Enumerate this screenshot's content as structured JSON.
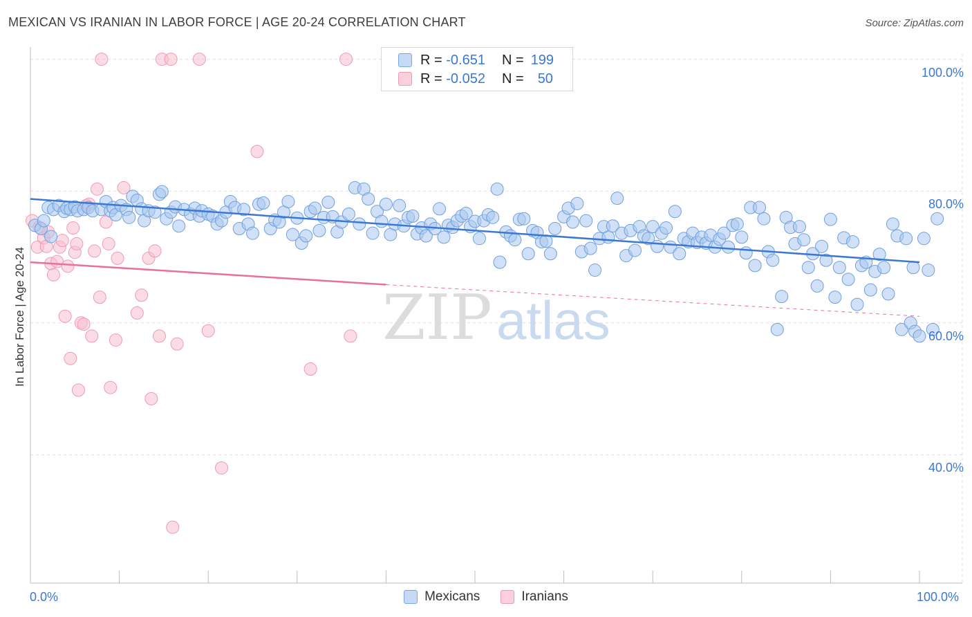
{
  "title": "MEXICAN VS IRANIAN IN LABOR FORCE | AGE 20-24 CORRELATION CHART",
  "source": "Source: ZipAtlas.com",
  "watermark": {
    "zip": "ZIP",
    "atlas": "atlas"
  },
  "legend": {
    "rows": [
      {
        "r_label": "R =",
        "r_value": "-0.651",
        "n_label": "N =",
        "n_value": "199",
        "color": "#a9c8f0"
      },
      {
        "r_label": "R =",
        "r_value": "-0.052",
        "n_label": "N =",
        "n_value": "50",
        "color": "#f5b8c8"
      }
    ],
    "bottom": [
      "Mexicans",
      "Iranians"
    ]
  },
  "colors": {
    "blue": "#3a78d4",
    "pink": "#e8709a",
    "blue_fill": "#a9c8f0",
    "pink_fill": "#f7c0d0",
    "tick": "#3b78d0"
  },
  "chart_data": {
    "type": "scatter",
    "ylabel": "In Labor Force | Age 20-24",
    "xlim": [
      0,
      100
    ],
    "ylim": [
      20,
      103
    ],
    "x_tick_labels": [
      "0.0%",
      "100.0%"
    ],
    "y_ticks": [
      40,
      60,
      80,
      100
    ],
    "y_tick_labels": [
      "40.0%",
      "60.0%",
      "80.0%",
      "100.0%"
    ],
    "grid": true,
    "series": [
      {
        "name": "Mexicans",
        "trend": {
          "x": [
            0,
            100
          ],
          "y": [
            78.8,
            69.2
          ]
        },
        "points": [
          [
            0.5,
            74.8
          ],
          [
            1.2,
            74.3
          ],
          [
            1.5,
            75.5
          ],
          [
            2.0,
            77.5
          ],
          [
            2.3,
            73.1
          ],
          [
            2.6,
            77.2
          ],
          [
            3.2,
            77.8
          ],
          [
            3.8,
            76.9
          ],
          [
            4.1,
            77.4
          ],
          [
            4.5,
            77.2
          ],
          [
            5.0,
            77.6
          ],
          [
            5.3,
            77.0
          ],
          [
            6.0,
            77.2
          ],
          [
            6.5,
            77.5
          ],
          [
            7.0,
            77.0
          ],
          [
            8.0,
            77.2
          ],
          [
            8.5,
            78.4
          ],
          [
            9.0,
            77.0
          ],
          [
            9.3,
            77.5
          ],
          [
            9.6,
            76.4
          ],
          [
            10.2,
            77.8
          ],
          [
            10.8,
            77.2
          ],
          [
            11.1,
            76.0
          ],
          [
            11.5,
            79.2
          ],
          [
            12.0,
            78.6
          ],
          [
            12.5,
            77.3
          ],
          [
            12.8,
            75.5
          ],
          [
            13.3,
            77.0
          ],
          [
            14.0,
            76.8
          ],
          [
            14.5,
            79.5
          ],
          [
            14.8,
            79.9
          ],
          [
            15.3,
            75.8
          ],
          [
            15.8,
            76.8
          ],
          [
            16.3,
            77.6
          ],
          [
            16.7,
            74.7
          ],
          [
            17.3,
            77.2
          ],
          [
            18.0,
            76.5
          ],
          [
            18.5,
            77.4
          ],
          [
            19.0,
            76.2
          ],
          [
            19.3,
            77.0
          ],
          [
            20.0,
            76.5
          ],
          [
            20.5,
            76.2
          ],
          [
            21.0,
            75.0
          ],
          [
            21.5,
            75.5
          ],
          [
            22.0,
            76.8
          ],
          [
            22.5,
            78.4
          ],
          [
            23.0,
            77.5
          ],
          [
            23.5,
            74.3
          ],
          [
            24.0,
            77.2
          ],
          [
            24.5,
            75.0
          ],
          [
            25.0,
            73.6
          ],
          [
            25.7,
            78.0
          ],
          [
            26.2,
            78.2
          ],
          [
            27.0,
            74.3
          ],
          [
            27.5,
            75.6
          ],
          [
            28.0,
            75.3
          ],
          [
            28.5,
            76.8
          ],
          [
            29.0,
            78.4
          ],
          [
            29.5,
            73.4
          ],
          [
            30.0,
            75.9
          ],
          [
            30.5,
            72.1
          ],
          [
            31.0,
            73.2
          ],
          [
            31.5,
            76.9
          ],
          [
            32.0,
            77.4
          ],
          [
            32.5,
            74.0
          ],
          [
            33.0,
            76.0
          ],
          [
            33.5,
            78.3
          ],
          [
            34.0,
            76.1
          ],
          [
            34.5,
            73.8
          ],
          [
            35.0,
            75.3
          ],
          [
            35.8,
            76.5
          ],
          [
            36.5,
            80.5
          ],
          [
            37.0,
            75.0
          ],
          [
            37.5,
            80.3
          ],
          [
            38.0,
            78.8
          ],
          [
            38.5,
            73.6
          ],
          [
            39.0,
            76.9
          ],
          [
            39.5,
            75.4
          ],
          [
            40.0,
            78.0
          ],
          [
            40.5,
            73.4
          ],
          [
            41.0,
            75.0
          ],
          [
            41.5,
            77.8
          ],
          [
            42.0,
            74.7
          ],
          [
            42.5,
            76.0
          ],
          [
            43.0,
            76.2
          ],
          [
            43.5,
            73.5
          ],
          [
            44.0,
            74.4
          ],
          [
            44.5,
            73.2
          ],
          [
            45.0,
            75.0
          ],
          [
            45.5,
            74.3
          ],
          [
            46.0,
            77.3
          ],
          [
            46.5,
            73.0
          ],
          [
            47.0,
            74.8
          ],
          [
            47.5,
            74.5
          ],
          [
            48.0,
            75.5
          ],
          [
            48.5,
            76.2
          ],
          [
            49.0,
            76.6
          ],
          [
            49.5,
            74.6
          ],
          [
            50.0,
            75.4
          ],
          [
            50.5,
            72.8
          ],
          [
            51.0,
            75.5
          ],
          [
            51.5,
            76.4
          ],
          [
            52.0,
            76.0
          ],
          [
            52.5,
            80.3
          ],
          [
            52.8,
            69.2
          ],
          [
            53.5,
            73.8
          ],
          [
            54.0,
            73.2
          ],
          [
            54.5,
            72.6
          ],
          [
            55.0,
            75.7
          ],
          [
            55.5,
            75.8
          ],
          [
            56.0,
            70.5
          ],
          [
            56.5,
            74.0
          ],
          [
            57.0,
            73.7
          ],
          [
            57.5,
            72.3
          ],
          [
            58.0,
            72.4
          ],
          [
            58.5,
            70.5
          ],
          [
            59.0,
            74.3
          ],
          [
            60.0,
            76.1
          ],
          [
            60.5,
            77.4
          ],
          [
            61.0,
            75.3
          ],
          [
            61.5,
            78.1
          ],
          [
            62.0,
            70.8
          ],
          [
            62.5,
            75.5
          ],
          [
            63.0,
            71.3
          ],
          [
            63.5,
            68.0
          ],
          [
            64.0,
            72.8
          ],
          [
            64.5,
            74.6
          ],
          [
            65.0,
            73.0
          ],
          [
            65.5,
            74.7
          ],
          [
            66.0,
            78.9
          ],
          [
            66.5,
            73.6
          ],
          [
            67.0,
            70.2
          ],
          [
            67.5,
            74.0
          ],
          [
            68.0,
            71.0
          ],
          [
            68.5,
            74.6
          ],
          [
            69.0,
            73.2
          ],
          [
            69.5,
            72.8
          ],
          [
            70.0,
            74.6
          ],
          [
            70.5,
            71.6
          ],
          [
            71.0,
            73.6
          ],
          [
            71.5,
            74.4
          ],
          [
            72.0,
            71.5
          ],
          [
            72.5,
            76.9
          ],
          [
            73.0,
            70.5
          ],
          [
            73.5,
            72.8
          ],
          [
            74.0,
            72.3
          ],
          [
            74.5,
            73.6
          ],
          [
            75.0,
            72.2
          ],
          [
            75.5,
            73.0
          ],
          [
            76.0,
            72.1
          ],
          [
            76.5,
            73.3
          ],
          [
            77.0,
            71.5
          ],
          [
            77.5,
            72.7
          ],
          [
            78.0,
            73.6
          ],
          [
            78.5,
            71.5
          ],
          [
            79.0,
            74.8
          ],
          [
            79.5,
            75.0
          ],
          [
            80.0,
            73.0
          ],
          [
            80.5,
            70.6
          ],
          [
            81.0,
            77.5
          ],
          [
            81.5,
            68.7
          ],
          [
            82.0,
            77.5
          ],
          [
            82.5,
            75.8
          ],
          [
            83.0,
            70.8
          ],
          [
            83.5,
            69.5
          ],
          [
            84.0,
            59.0
          ],
          [
            84.5,
            64.0
          ],
          [
            85.0,
            76.0
          ],
          [
            85.5,
            74.5
          ],
          [
            86.0,
            72.0
          ],
          [
            86.5,
            74.6
          ],
          [
            87.0,
            72.6
          ],
          [
            87.5,
            68.4
          ],
          [
            88.0,
            70.5
          ],
          [
            88.5,
            65.6
          ],
          [
            89.0,
            71.6
          ],
          [
            89.5,
            69.5
          ],
          [
            90.0,
            75.7
          ],
          [
            90.5,
            63.9
          ],
          [
            91.0,
            68.4
          ],
          [
            91.5,
            72.9
          ],
          [
            92.0,
            66.6
          ],
          [
            92.5,
            72.3
          ],
          [
            93.0,
            62.8
          ],
          [
            93.5,
            68.7
          ],
          [
            94.0,
            69.2
          ],
          [
            94.5,
            65.0
          ],
          [
            95.0,
            67.8
          ],
          [
            95.5,
            70.4
          ],
          [
            96.0,
            68.4
          ],
          [
            96.5,
            64.4
          ],
          [
            97.0,
            75.0
          ],
          [
            97.5,
            73.2
          ],
          [
            98.0,
            59.0
          ],
          [
            98.5,
            72.8
          ],
          [
            99.0,
            60.0
          ],
          [
            99.3,
            68.4
          ],
          [
            99.5,
            58.7
          ],
          [
            100.0,
            58.0
          ],
          [
            100.5,
            72.8
          ],
          [
            101.0,
            68.0
          ],
          [
            101.5,
            59.0
          ],
          [
            102.0,
            75.8
          ]
        ]
      },
      {
        "name": "Iranians",
        "trend": {
          "x": [
            0,
            40
          ],
          "y": [
            69.2,
            65.8
          ],
          "dashed_to": {
            "x": 100,
            "y": 61.0
          }
        },
        "points": [
          [
            0.2,
            75.5
          ],
          [
            0.8,
            71.5
          ],
          [
            1.0,
            74.5
          ],
          [
            1.5,
            72.9
          ],
          [
            1.8,
            71.6
          ],
          [
            2.0,
            73.8
          ],
          [
            2.3,
            69.0
          ],
          [
            2.6,
            67.3
          ],
          [
            3.0,
            69.3
          ],
          [
            3.3,
            71.5
          ],
          [
            3.6,
            72.5
          ],
          [
            3.9,
            61.0
          ],
          [
            4.2,
            68.6
          ],
          [
            4.5,
            54.6
          ],
          [
            4.8,
            74.4
          ],
          [
            5.0,
            70.7
          ],
          [
            5.2,
            72.0
          ],
          [
            5.4,
            49.8
          ],
          [
            5.7,
            60.0
          ],
          [
            6.0,
            59.8
          ],
          [
            6.3,
            77.8
          ],
          [
            6.6,
            78.0
          ],
          [
            6.9,
            58.0
          ],
          [
            7.2,
            70.9
          ],
          [
            7.5,
            80.3
          ],
          [
            7.8,
            63.9
          ],
          [
            8.0,
            100.0
          ],
          [
            8.5,
            75.3
          ],
          [
            8.8,
            72.0
          ],
          [
            9.0,
            50.2
          ],
          [
            9.6,
            57.4
          ],
          [
            9.8,
            69.8
          ],
          [
            10.5,
            80.5
          ],
          [
            12.0,
            61.5
          ],
          [
            12.5,
            64.2
          ],
          [
            13.3,
            69.8
          ],
          [
            13.6,
            48.5
          ],
          [
            14.0,
            70.9
          ],
          [
            14.5,
            58.0
          ],
          [
            14.8,
            100.0
          ],
          [
            16.5,
            56.8
          ],
          [
            16.0,
            29.0
          ],
          [
            19.0,
            100.0
          ],
          [
            20.0,
            58.8
          ],
          [
            21.5,
            38.0
          ],
          [
            25.5,
            86.0
          ],
          [
            31.5,
            53.0
          ],
          [
            35.5,
            100.0
          ],
          [
            36.0,
            58.0
          ],
          [
            15.8,
            100.0
          ]
        ]
      }
    ]
  }
}
